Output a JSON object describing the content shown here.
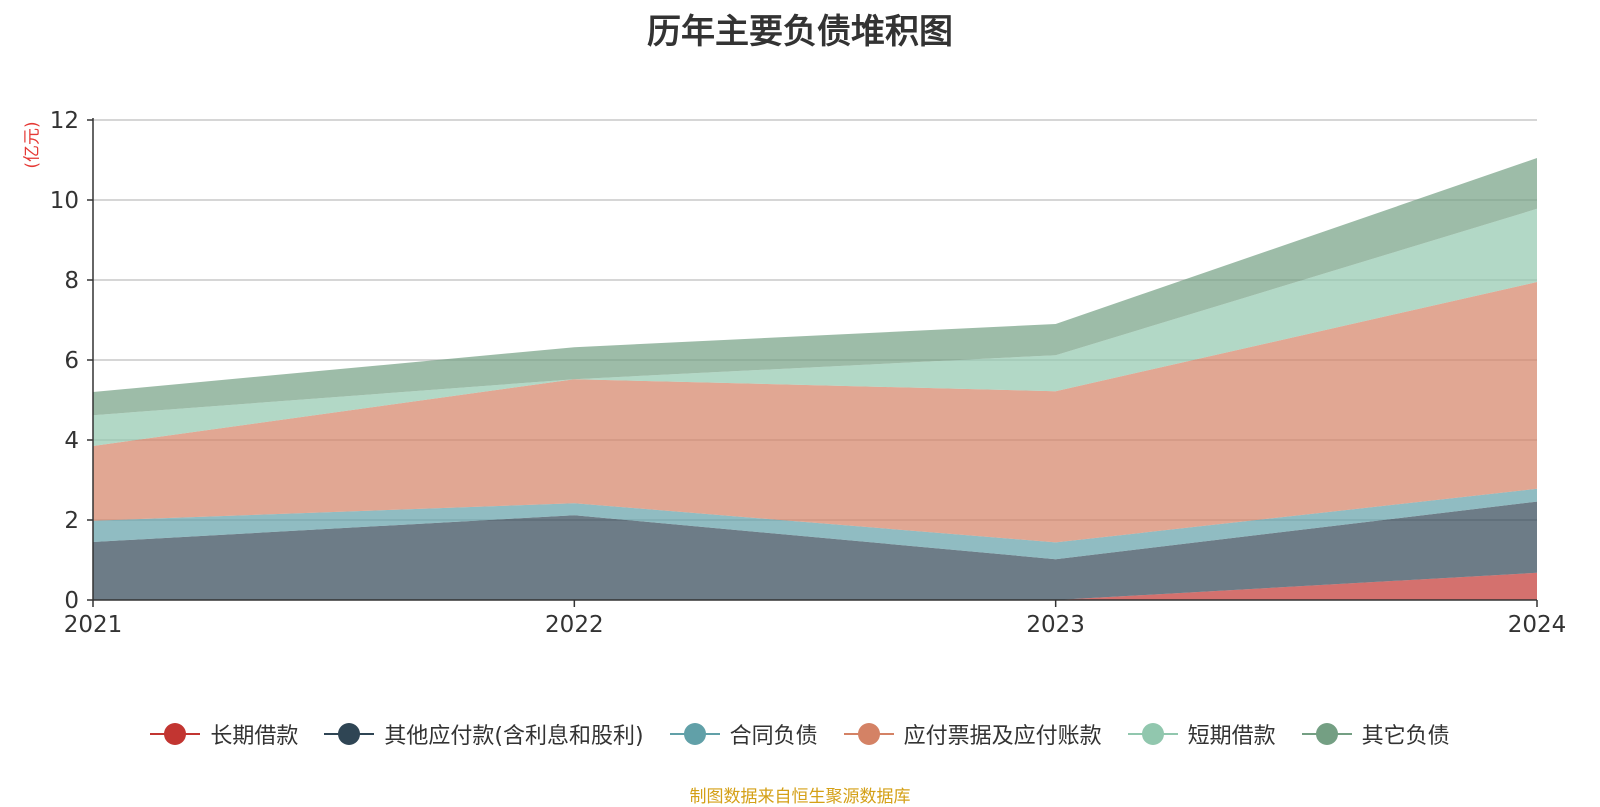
{
  "chart_data": {
    "type": "area",
    "stacked": true,
    "title": "历年主要负债堆积图",
    "unit": "(亿元)",
    "categories": [
      "2021",
      "2022",
      "2023",
      "2024"
    ],
    "y_ticks": [
      "0",
      "2",
      "4",
      "6",
      "8",
      "10",
      "12"
    ],
    "ylim": [
      0,
      12
    ],
    "grid": true,
    "legend_position": "bottom",
    "series": [
      {
        "name": "长期借款",
        "values": [
          0,
          0,
          0,
          0.68
        ],
        "color": "#c23531"
      },
      {
        "name": "其他应付款(含利息和股利)",
        "values": [
          1.45,
          2.12,
          1.02,
          1.78
        ],
        "color": "#2f4554"
      },
      {
        "name": "合同负债",
        "values": [
          0.53,
          0.3,
          0.42,
          0.32
        ],
        "color": "#61a0a8"
      },
      {
        "name": "应付票据及应付账款",
        "values": [
          1.87,
          3.1,
          3.78,
          5.17
        ],
        "color": "#d48265"
      },
      {
        "name": "短期借款",
        "values": [
          0.77,
          0,
          0.9,
          1.83
        ],
        "color": "#91c7ae"
      },
      {
        "name": "其它负债",
        "values": [
          0.58,
          0.8,
          0.78,
          1.27
        ],
        "color": "#749f83"
      }
    ]
  },
  "source_note": "制图数据来自恒生聚源数据库"
}
